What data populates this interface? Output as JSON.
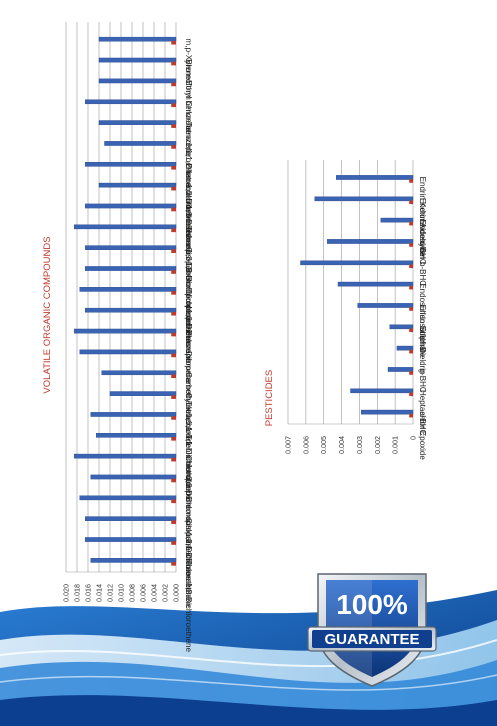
{
  "colors": {
    "bar_blue": "#3a63b3",
    "bar_red": "#c0392b",
    "title_red": "#c0392b",
    "grid": "#9a9a9a",
    "swoosh_dark": "#0d4a9c",
    "swoosh_light": "#5fb0ea",
    "badge_silver": "#d7dde3",
    "badge_blue": "#123f8d"
  },
  "badge": {
    "percent": "100%",
    "word": "GUARANTEE"
  },
  "chart_data": [
    {
      "type": "bar",
      "orientation": "horizontal",
      "title": "VOLATILE ORGANIC COMPOUNDS",
      "ylim": [
        0,
        0.02
      ],
      "ticks": [
        "0.020",
        "0.018",
        "0.016",
        "0.014",
        "0.012",
        "0.010",
        "0.008",
        "0.006",
        "0.004",
        "0.002",
        "0.000"
      ],
      "grid": true,
      "legend": "none",
      "categories": [
        "m,p-Xylene",
        "Bromoform",
        "Ethyl benzene",
        "Chlorobenzene",
        "Tetrachloroethane",
        "1,1,1,2-tetrachloroethane",
        "Dibromochloromethane",
        "1,2-Dibromoethane",
        "1,3-Dichloropropene",
        "Trans-1,3-Dichloropropene",
        "Cis-1,3-Dichloropropene",
        "Bromodichloromethane",
        "Trichloroethene",
        "1,2-Dichloropropane",
        "Benzene",
        "Dibromomethane",
        "Carbon Tetrachloride",
        "Cyclohexane",
        "1,1,1-Trichloroethane",
        "1,1-Dichloropropene",
        "Chloroform",
        "2,2-Dichloropropane",
        "Bromochloromethane",
        "Cis-1,2-Dichloroethene",
        "1,1-Dichloroethane",
        "Trans-1,2-Dichloroethene"
      ],
      "series": [
        {
          "values": [
            0.014,
            0.014,
            0.014,
            0.0165,
            0.014,
            0.013,
            0.0165,
            0.014,
            0.0165,
            0.0185,
            0.0165,
            0.0165,
            0.0175,
            0.0165,
            0.0185,
            0.0175,
            0.0135,
            0.012,
            0.0155,
            0.0145,
            0.0185,
            0.0155,
            0.0175,
            0.0165,
            0.0165,
            0.0155
          ]
        },
        {
          "values": [
            0.0005,
            0.0005,
            0.0005,
            0.0005,
            0.0005,
            0.0005,
            0.0005,
            0.0005,
            0.0005,
            0.0005,
            0.0005,
            0.0005,
            0.0005,
            0.0005,
            0.0005,
            0.0005,
            0.0005,
            0.0005,
            0.0005,
            0.0005,
            0.0005,
            0.0005,
            0.0005,
            0.0005,
            0.0005,
            0.0005
          ]
        }
      ]
    },
    {
      "type": "bar",
      "orientation": "horizontal",
      "title": "PESTICIDES",
      "ylim": [
        0,
        0.007
      ],
      "ticks": [
        "0.007",
        "0.006",
        "0.005",
        "0.004",
        "0.003",
        "0.002",
        "0.001",
        "0"
      ],
      "grid": true,
      "legend": "none",
      "categories": [
        "Endrin Ketone",
        "Endrin Aldehyde",
        "Endosulfan I",
        "d-BHC",
        "b-BHC",
        "Endosulfan Sulphate",
        "Endosulfan II",
        "Endrin",
        "Dieldrin",
        "g-BHC",
        "Heptachlor Epoxide",
        "a-BHC"
      ],
      "series": [
        {
          "values": [
            0.0043,
            0.0055,
            0.0018,
            0.0048,
            0.0063,
            0.0042,
            0.0031,
            0.0013,
            0.0009,
            0.0014,
            0.0035,
            0.0029
          ]
        },
        {
          "values": [
            0.0001,
            0.0001,
            0.0001,
            0.0001,
            0.0001,
            0.0001,
            0.0001,
            0.0001,
            0.0001,
            0.0001,
            0.0001,
            0.0001
          ]
        }
      ]
    }
  ]
}
